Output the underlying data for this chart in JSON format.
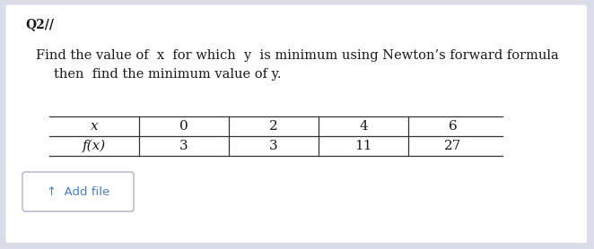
{
  "bg_color": "#dcdce8",
  "card_color": "#ffffff",
  "q_label": "Q2//",
  "problem_line1": "Find the value of  x  for which  y  is minimum using Newton’s forward formula",
  "problem_line2": "then  find the minimum value of y.",
  "x_header": "x",
  "fx_label": "f(x)",
  "x_values": [
    "0",
    "2",
    "4",
    "6"
  ],
  "fx_values": [
    "3",
    "3",
    "11",
    "27"
  ],
  "add_file_text": "↑  Add file",
  "font_size_q": 10,
  "font_size_problem": 10.5,
  "font_size_table": 11,
  "font_size_add": 9.5,
  "text_color": "#1a1a1a",
  "add_file_color": "#4a7fc1",
  "line_color": "#333333"
}
